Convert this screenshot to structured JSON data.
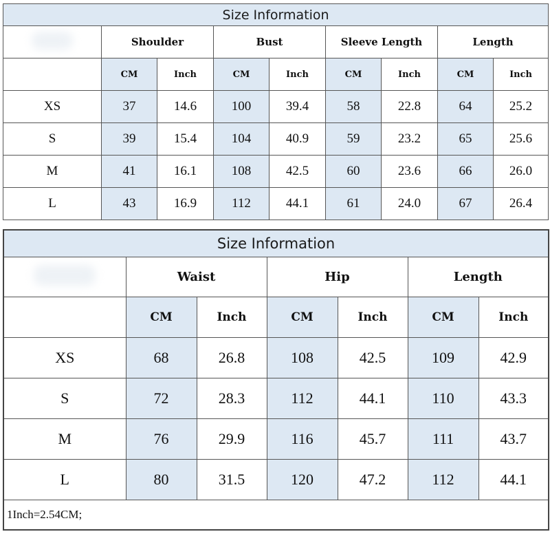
{
  "tables": [
    {
      "title": "Size Information",
      "groups": [
        "Shoulder",
        "Bust",
        "Sleeve Length",
        "Length"
      ],
      "units": [
        "CM",
        "Inch"
      ],
      "rows": [
        {
          "size": "XS",
          "values": [
            "37",
            "14.6",
            "100",
            "39.4",
            "58",
            "22.8",
            "64",
            "25.2"
          ]
        },
        {
          "size": "S",
          "values": [
            "39",
            "15.4",
            "104",
            "40.9",
            "59",
            "23.2",
            "65",
            "25.6"
          ]
        },
        {
          "size": "M",
          "values": [
            "41",
            "16.1",
            "108",
            "42.5",
            "60",
            "23.6",
            "66",
            "26.0"
          ]
        },
        {
          "size": "L",
          "values": [
            "43",
            "16.9",
            "112",
            "44.1",
            "61",
            "24.0",
            "67",
            "26.4"
          ]
        }
      ]
    },
    {
      "title": "Size Information",
      "groups": [
        "Waist",
        "Hip",
        "Length"
      ],
      "units": [
        "CM",
        "Inch"
      ],
      "rows": [
        {
          "size": "XS",
          "values": [
            "68",
            "26.8",
            "108",
            "42.5",
            "109",
            "42.9"
          ]
        },
        {
          "size": "S",
          "values": [
            "72",
            "28.3",
            "112",
            "44.1",
            "110",
            "43.3"
          ]
        },
        {
          "size": "M",
          "values": [
            "76",
            "29.9",
            "116",
            "45.7",
            "111",
            "43.7"
          ]
        },
        {
          "size": "L",
          "values": [
            "80",
            "31.5",
            "120",
            "47.2",
            "112",
            "44.1"
          ]
        }
      ],
      "note": "1Inch=2.54CM;"
    }
  ],
  "colors": {
    "title_bg": "#dde8f3",
    "cm_bg": "#dde8f3",
    "border": "#555555"
  }
}
